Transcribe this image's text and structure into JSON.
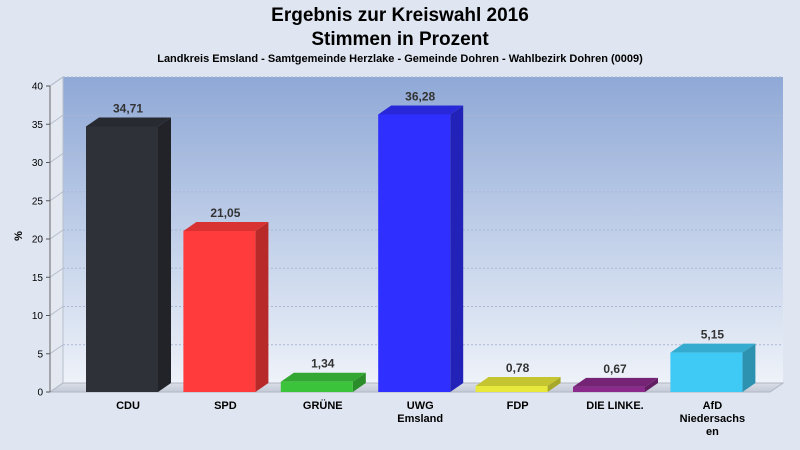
{
  "chart_data": {
    "type": "bar",
    "title": [
      "Ergebnis zur Kreiswahl 2016",
      "Stimmen in Prozent"
    ],
    "subtitle": "Landkreis Emsland - Samtgemeinde Herzlake - Gemeinde Dohren - Wahlbezirk Dohren (0009)",
    "ylabel": "%",
    "ylim": [
      0,
      40
    ],
    "yticks": [
      0,
      5,
      10,
      15,
      20,
      25,
      30,
      35,
      40
    ],
    "grid": true,
    "categories": [
      [
        "CDU"
      ],
      [
        "SPD"
      ],
      [
        "GRÜNE"
      ],
      [
        "UWG",
        "Emsland"
      ],
      [
        "FDP"
      ],
      [
        "DIE LINKE."
      ],
      [
        "AfD",
        "Niedersachs",
        "en"
      ]
    ],
    "values": [
      34.71,
      21.05,
      1.34,
      36.28,
      0.78,
      0.67,
      5.15
    ],
    "value_labels": [
      "34,71",
      "21,05",
      "1,34",
      "36,28",
      "0,78",
      "0,67",
      "5,15"
    ],
    "colors": [
      "#2e3138",
      "#ff3b3b",
      "#3bc43b",
      "#2f2fff",
      "#e8e83a",
      "#8a2a8a",
      "#3fc9f5"
    ]
  }
}
